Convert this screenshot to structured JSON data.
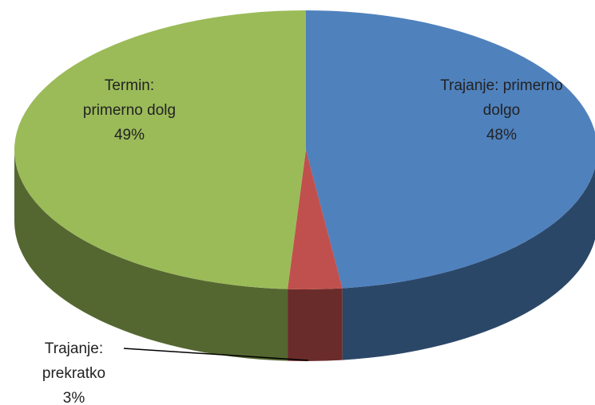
{
  "chart_data": {
    "type": "pie",
    "categories": [
      "Trajanje: primerno dolgo",
      "Trajanje: prekratko",
      "Termin: primerno dolg"
    ],
    "values": [
      48,
      3,
      49
    ],
    "value_labels": [
      "48%",
      "3%",
      "49%"
    ],
    "colors": [
      "#4f81bd",
      "#c0504d",
      "#9bbb59"
    ]
  }
}
